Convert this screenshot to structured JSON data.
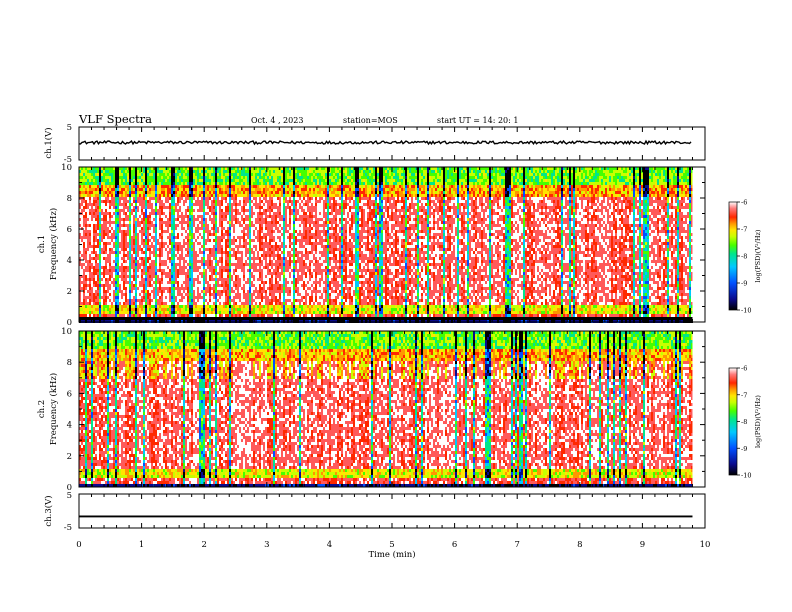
{
  "header": {
    "title": "VLF Spectra",
    "date": "Oct. 4 , 2023",
    "station": "station=MOS",
    "start": "start UT =  14: 20: 1"
  },
  "chart_data": [
    {
      "type": "line",
      "ylabel": "ch.1(V)",
      "ylim": [
        -5,
        5
      ],
      "ytick_labels": [
        "5",
        "-5"
      ],
      "description_value": "trace near 0 V with noise",
      "xlim": [
        0,
        10
      ],
      "series_level": 0.3
    },
    {
      "type": "heatmap",
      "ylabel": "ch.1",
      "ylabel2": "Frequency (kHz)",
      "ylim": [
        0,
        10
      ],
      "ytick_labels": [
        "0",
        "2",
        "4",
        "6",
        "8",
        "10"
      ],
      "xlim": [
        0,
        10
      ],
      "colorbar": {
        "label": "log(PSD)(V²/Hz)",
        "range": [
          -10,
          -6
        ],
        "tick_labels": [
          "-6",
          "-7",
          "-8",
          "-9",
          "-10"
        ]
      }
    },
    {
      "type": "heatmap",
      "ylabel": "ch.2",
      "ylabel2": "Frequency (kHz)",
      "ylim": [
        0,
        10
      ],
      "ytick_labels": [
        "0",
        "2",
        "4",
        "6",
        "8",
        "10"
      ],
      "xlim": [
        0,
        10
      ],
      "colorbar": {
        "label": "log(PSD)(V²/Hz)",
        "range": [
          -10,
          -6
        ],
        "tick_labels": [
          "-6",
          "-7",
          "-8",
          "-9",
          "-10"
        ]
      }
    },
    {
      "type": "line",
      "ylabel": "ch.3(V)",
      "ylim": [
        -5,
        5
      ],
      "ytick_labels": [
        "5",
        "-5"
      ],
      "xlim": [
        0,
        10
      ],
      "series_level": -1.6
    }
  ],
  "xaxis": {
    "label": "Time (min)",
    "tick_labels": [
      "0",
      "1",
      "2",
      "3",
      "4",
      "5",
      "6",
      "7",
      "8",
      "9",
      "10"
    ]
  },
  "colors": {
    "palette": [
      "#000000",
      "#0a0a8c",
      "#0050ff",
      "#00c8ff",
      "#00e68c",
      "#46ff00",
      "#c8ff00",
      "#ffe600",
      "#ff9600",
      "#ff2800",
      "#ff5a5a",
      "#ffffff"
    ]
  }
}
